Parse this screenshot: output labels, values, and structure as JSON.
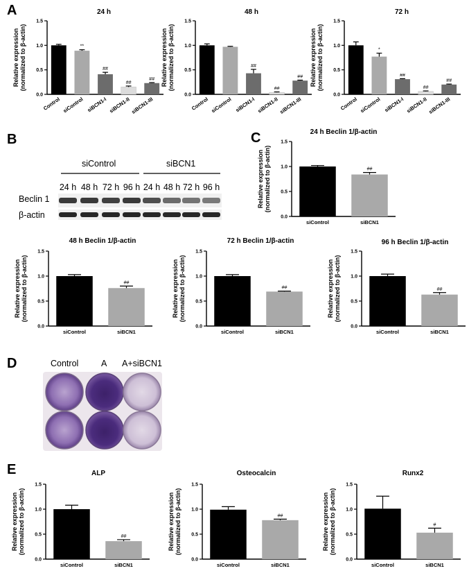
{
  "panels": {
    "A": "A",
    "B": "B",
    "C": "C",
    "D": "D",
    "E": "E"
  },
  "y_axis_label": [
    "Relative expression",
    "(normalized to β-actin)"
  ],
  "western_blot": {
    "group_labels": [
      "siControl",
      "siBCN1"
    ],
    "time_labels": [
      "24 h",
      "48 h",
      "72 h",
      "96 h",
      "24 h",
      "48 h",
      "72 h",
      "96 h"
    ],
    "row_labels": [
      "Beclin 1",
      "β-actin"
    ]
  },
  "plate": {
    "column_labels": [
      "Control",
      "A",
      "A+siBCN1"
    ]
  },
  "colors": {
    "black": "#000000",
    "gray_light": "#a9a9a9",
    "gray_dark": "#6c6c6c",
    "gray_mid": "#8a8a8a",
    "very_light": "#dcdcdc",
    "purple": "#5a3a86"
  },
  "chart_data": [
    {
      "id": "A-24h",
      "type": "bar",
      "title": "24 h",
      "categories": [
        "Control",
        "siControl",
        "siBCN1-I",
        "siBCN1-II",
        "siBCN1-III"
      ],
      "values": [
        1.0,
        0.89,
        0.41,
        0.15,
        0.23
      ],
      "errors": [
        0.02,
        0.02,
        0.04,
        0.02,
        0.01
      ],
      "significance": [
        "",
        "**",
        "##",
        "##",
        "##"
      ],
      "colors": [
        "#000000",
        "#a9a9a9",
        "#6c6c6c",
        "#dcdcdc",
        "#6c6c6c"
      ],
      "ylim": [
        0,
        1.5
      ],
      "yticks": [
        "0.0",
        "0.5",
        "1.0",
        "1.5"
      ]
    },
    {
      "id": "A-48h",
      "type": "bar",
      "title": "48 h",
      "categories": [
        "Control",
        "siControl",
        "siBCN1-I",
        "siBCN1-II",
        "siBCN1-III"
      ],
      "values": [
        1.0,
        0.97,
        0.43,
        0.04,
        0.28
      ],
      "errors": [
        0.03,
        0.01,
        0.08,
        0.01,
        0.01
      ],
      "significance": [
        "",
        "",
        "##",
        "##",
        "##"
      ],
      "colors": [
        "#000000",
        "#a9a9a9",
        "#6c6c6c",
        "#dcdcdc",
        "#6c6c6c"
      ],
      "ylim": [
        0,
        1.5
      ],
      "yticks": [
        "0.0",
        "0.5",
        "1.0",
        "1.5"
      ]
    },
    {
      "id": "A-72h",
      "type": "bar",
      "title": "72 h",
      "categories": [
        "Control",
        "siControl",
        "siBCN1-I",
        "siBCN1-II",
        "siBCN1-III"
      ],
      "values": [
        1.0,
        0.77,
        0.31,
        0.06,
        0.2
      ],
      "errors": [
        0.07,
        0.07,
        0.01,
        0.01,
        0.01
      ],
      "significance": [
        "",
        "*",
        "##",
        "##",
        "##"
      ],
      "colors": [
        "#000000",
        "#a9a9a9",
        "#6c6c6c",
        "#dcdcdc",
        "#6c6c6c"
      ],
      "ylim": [
        0,
        1.5
      ],
      "yticks": [
        "0.0",
        "0.5",
        "1.0",
        "1.5"
      ]
    },
    {
      "id": "C-24h",
      "type": "bar",
      "title": "24 h Beclin 1/β-actin",
      "categories": [
        "siControl",
        "siBCN1"
      ],
      "values": [
        1.0,
        0.84
      ],
      "errors": [
        0.02,
        0.04
      ],
      "significance": [
        "",
        "##"
      ],
      "colors": [
        "#000000",
        "#a9a9a9"
      ],
      "ylim": [
        0,
        1.5
      ],
      "yticks": [
        "0.0",
        "0.5",
        "1.0",
        "1.5"
      ]
    },
    {
      "id": "C-48h",
      "type": "bar",
      "title": "48 h Beclin 1/β-actin",
      "categories": [
        "siControl",
        "siBCN1"
      ],
      "values": [
        1.0,
        0.76
      ],
      "errors": [
        0.03,
        0.04
      ],
      "significance": [
        "",
        "##"
      ],
      "colors": [
        "#000000",
        "#a9a9a9"
      ],
      "ylim": [
        0,
        1.5
      ],
      "yticks": [
        "0.0",
        "0.5",
        "1.0",
        "1.5"
      ]
    },
    {
      "id": "C-72h",
      "type": "bar",
      "title": "72 h Beclin 1/β-actin",
      "categories": [
        "siControl",
        "siBCN1"
      ],
      "values": [
        1.0,
        0.69
      ],
      "errors": [
        0.03,
        0.01
      ],
      "significance": [
        "",
        "##"
      ],
      "colors": [
        "#000000",
        "#a9a9a9"
      ],
      "ylim": [
        0,
        1.5
      ],
      "yticks": [
        "0.0",
        "0.5",
        "1.0",
        "1.5"
      ]
    },
    {
      "id": "C-96h",
      "type": "bar",
      "title": "96 h Beclin 1/β-actin",
      "categories": [
        "siControl",
        "siBCN1"
      ],
      "values": [
        1.0,
        0.63
      ],
      "errors": [
        0.04,
        0.04
      ],
      "significance": [
        "",
        "##"
      ],
      "colors": [
        "#000000",
        "#a9a9a9"
      ],
      "ylim": [
        0,
        1.5
      ],
      "yticks": [
        "0.0",
        "0.5",
        "1.0",
        "1.5"
      ]
    },
    {
      "id": "E-ALP",
      "type": "bar",
      "title": "ALP",
      "categories": [
        "siControl",
        "siBCN1"
      ],
      "values": [
        1.0,
        0.36
      ],
      "errors": [
        0.08,
        0.03
      ],
      "significance": [
        "",
        "##"
      ],
      "colors": [
        "#000000",
        "#a9a9a9"
      ],
      "ylim": [
        0,
        1.5
      ],
      "yticks": [
        "0.0",
        "0.5",
        "1.0",
        "1.5"
      ]
    },
    {
      "id": "E-Osteocalcin",
      "type": "bar",
      "title": "Osteocalcin",
      "categories": [
        "siControl",
        "siBCN1"
      ],
      "values": [
        0.99,
        0.78
      ],
      "errors": [
        0.06,
        0.02
      ],
      "significance": [
        "",
        "##"
      ],
      "colors": [
        "#000000",
        "#a9a9a9"
      ],
      "ylim": [
        0,
        1.5
      ],
      "yticks": [
        "0.0",
        "0.5",
        "1.0",
        "1.5"
      ]
    },
    {
      "id": "E-Runx2",
      "type": "bar",
      "title": "Runx2",
      "categories": [
        "siControl",
        "siBCN1"
      ],
      "values": [
        1.01,
        0.53
      ],
      "errors": [
        0.25,
        0.09
      ],
      "significance": [
        "",
        "#"
      ],
      "colors": [
        "#000000",
        "#a9a9a9"
      ],
      "ylim": [
        0,
        1.5
      ],
      "yticks": [
        "0.0",
        "0.5",
        "1.0",
        "1.5"
      ]
    }
  ]
}
